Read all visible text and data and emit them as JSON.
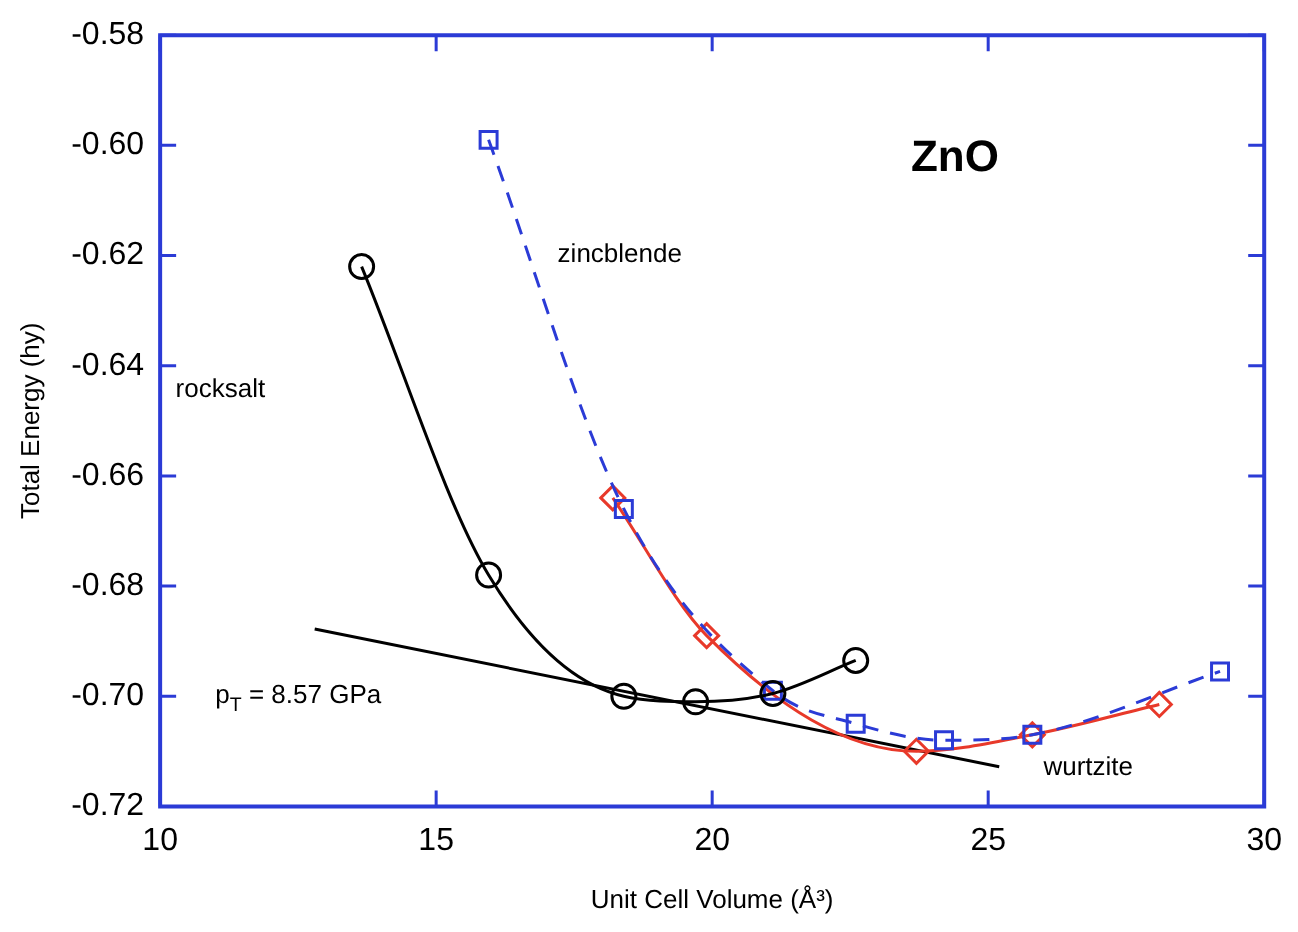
{
  "chart_data": {
    "type": "line",
    "title": "ZnO",
    "xlabel": "Unit Cell Volume (Å³)",
    "ylabel": "Total Energy (hy)",
    "xlim": [
      10,
      30
    ],
    "xticks": [
      10,
      15,
      20,
      25,
      30
    ],
    "ylim": [
      -0.72,
      -0.58
    ],
    "yticks": [
      {
        "value": -0.72,
        "label": "-0.72"
      },
      {
        "value": -0.7,
        "label": "-0.70"
      },
      {
        "value": -0.68,
        "label": "-0.68"
      },
      {
        "value": -0.66,
        "label": "-0.66"
      },
      {
        "value": -0.64,
        "label": "-0.64"
      },
      {
        "value": -0.62,
        "label": "-0.62"
      },
      {
        "value": -0.6,
        "label": "-0.60"
      },
      {
        "value": -0.58,
        "label": "-0.58"
      }
    ],
    "grid": false,
    "legend": false,
    "series": [
      {
        "color": "#000000",
        "marker": "circle",
        "line_style": "solid",
        "x": [
          13.65,
          15.95,
          18.4,
          19.7,
          21.1,
          22.6
        ],
        "values": [
          -0.622,
          -0.678,
          -0.7,
          -0.701,
          -0.6995,
          -0.6935
        ]
      },
      {
        "color": "#2b3bd6",
        "marker": "square",
        "line_style": "dashed",
        "x": [
          15.95,
          18.4,
          21.1,
          22.6,
          24.2,
          25.8,
          29.2
        ],
        "values": [
          -0.599,
          -0.666,
          -0.699,
          -0.705,
          -0.708,
          -0.707,
          -0.6955
        ]
      },
      {
        "color": "#e8392a",
        "marker": "diamond",
        "line_style": "solid",
        "x": [
          18.2,
          19.9,
          21.1,
          23.7,
          25.8,
          28.1
        ],
        "values": [
          -0.664,
          -0.689,
          null,
          -0.71,
          -0.707,
          -0.7015
        ]
      },
      {
        "color": "#000000",
        "marker": "none",
        "line_style": "solid",
        "x": [
          12.8,
          25.2
        ],
        "values": [
          -0.6878,
          -0.7128
        ]
      }
    ],
    "annotations": [
      "rocksalt",
      "zincblende",
      "wurtzite",
      "p$_{T}$ = 8.57 GPa"
    ]
  }
}
